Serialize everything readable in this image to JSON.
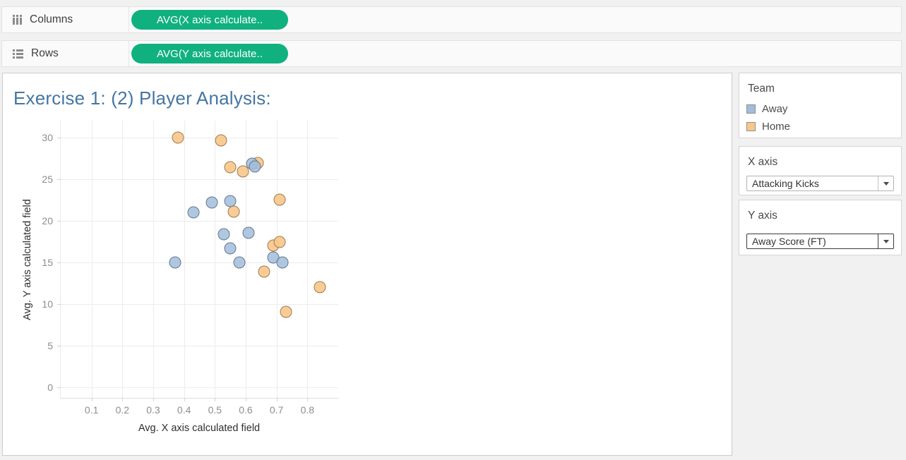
{
  "colors": {
    "pill_green": "#10b17e",
    "title_blue": "#4576a3",
    "away_fill": "rgba(161,189,219,0.85)",
    "away_stroke": "#65778b",
    "home_fill": "rgba(250,199,138,0.9)",
    "home_stroke": "#9c7a4d"
  },
  "shelves": {
    "columns": {
      "label": "Columns",
      "pill": "AVG(X axis calculate.."
    },
    "rows": {
      "label": "Rows",
      "pill": "AVG(Y axis calculate.."
    }
  },
  "chart_data": {
    "type": "scatter",
    "title": "Exercise 1: (2) Player Analysis:",
    "xlabel": "Avg. X axis calculated field",
    "ylabel": "Avg. Y axis calculated field",
    "xlim": [
      0,
      0.9
    ],
    "ylim": [
      -1.3,
      32
    ],
    "grid": true,
    "x_ticks": [
      0.1,
      0.2,
      0.3,
      0.4,
      0.5,
      0.6,
      0.7,
      0.8
    ],
    "x_tick_labels": [
      "0.1",
      "0.2",
      "0.3",
      "0.4",
      "0.5",
      "0.6",
      "0.7",
      "0.8"
    ],
    "y_ticks": [
      0,
      5,
      10,
      15,
      20,
      25,
      30
    ],
    "y_tick_labels": [
      "0",
      "5",
      "10",
      "15",
      "20",
      "25",
      "30"
    ],
    "legend_position": "right-panel",
    "series": [
      {
        "name": "Away",
        "fill": "rgba(161,189,219,0.85)",
        "stroke": "#65778b",
        "points": [
          [
            0.37,
            15.0
          ],
          [
            0.43,
            21.0
          ],
          [
            0.49,
            22.2
          ],
          [
            0.53,
            18.4
          ],
          [
            0.55,
            22.3
          ],
          [
            0.55,
            16.7
          ],
          [
            0.58,
            15.0
          ],
          [
            0.61,
            18.5
          ],
          [
            0.62,
            26.8
          ],
          [
            0.63,
            26.5
          ],
          [
            0.69,
            15.6
          ],
          [
            0.72,
            15.0
          ]
        ]
      },
      {
        "name": "Home",
        "fill": "rgba(250,199,138,0.9)",
        "stroke": "#9c7a4d",
        "points": [
          [
            0.38,
            30.0
          ],
          [
            0.52,
            29.6
          ],
          [
            0.55,
            26.4
          ],
          [
            0.56,
            21.1
          ],
          [
            0.59,
            25.9
          ],
          [
            0.64,
            26.9
          ],
          [
            0.66,
            13.9
          ],
          [
            0.69,
            17.0
          ],
          [
            0.71,
            17.4
          ],
          [
            0.71,
            22.5
          ],
          [
            0.73,
            9.0
          ],
          [
            0.84,
            12.0
          ]
        ]
      }
    ]
  },
  "sidebar": {
    "team": {
      "title": "Team",
      "items": [
        {
          "label": "Away",
          "color": "#a1bddb"
        },
        {
          "label": "Home",
          "color": "#f8c78a"
        }
      ]
    },
    "x_axis": {
      "title": "X axis",
      "value": "Attacking Kicks"
    },
    "y_axis": {
      "title": "Y axis",
      "value": "Away Score (FT)"
    }
  }
}
